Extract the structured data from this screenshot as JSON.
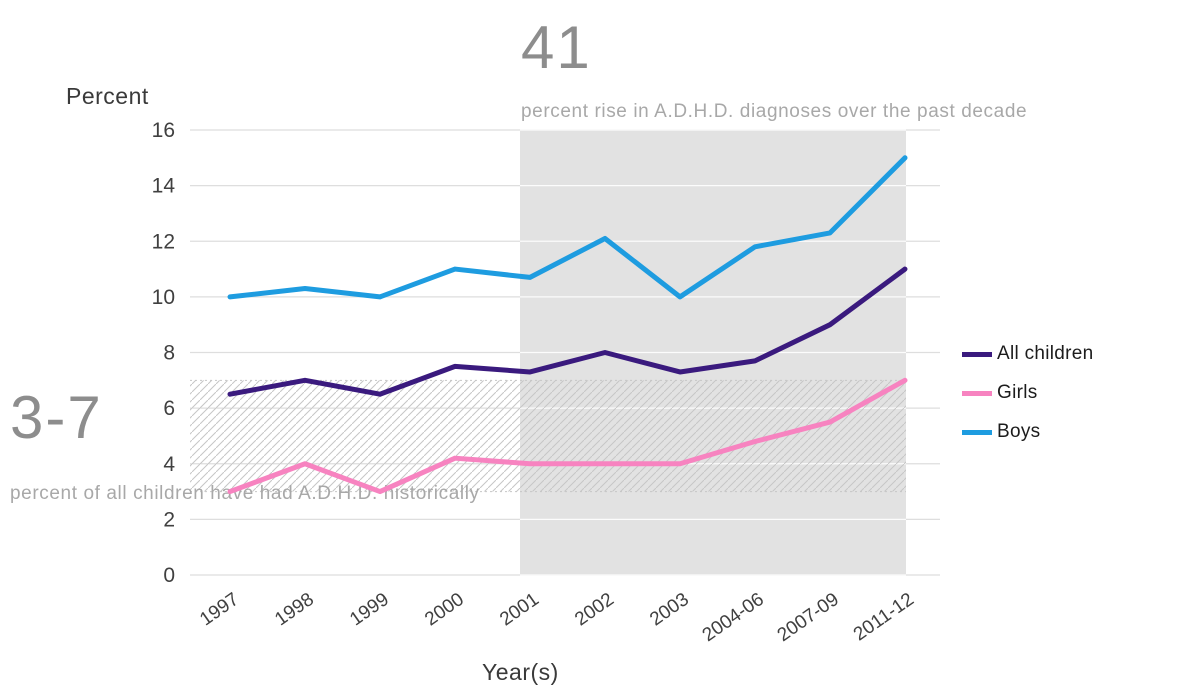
{
  "chart_data": {
    "type": "line",
    "title": "",
    "xlabel": "Year(s)",
    "ylabel": "Percent",
    "ylim": [
      0,
      16
    ],
    "yticks": [
      0,
      2,
      4,
      6,
      8,
      10,
      12,
      14,
      16
    ],
    "categories": [
      "1997",
      "1998",
      "1999",
      "2000",
      "2001",
      "2002",
      "2003",
      "2004-06",
      "2007-09",
      "2011-12"
    ],
    "series": [
      {
        "name": "All children",
        "color": "#3a1a7e",
        "values": [
          6.5,
          7.0,
          6.5,
          7.5,
          7.3,
          8.0,
          7.3,
          7.7,
          9.0,
          11.0
        ]
      },
      {
        "name": "Girls",
        "color": "#f783c0",
        "values": [
          3.0,
          4.0,
          3.0,
          4.2,
          4.0,
          4.0,
          4.0,
          4.8,
          5.5,
          7.0
        ]
      },
      {
        "name": "Boys",
        "color": "#1e9ce0",
        "values": [
          10.0,
          10.3,
          10.0,
          11.0,
          10.7,
          12.1,
          10.0,
          11.8,
          12.3,
          15.0
        ]
      }
    ],
    "grid": true,
    "legend_position": "right",
    "shaded_region": {
      "from": "2001",
      "to": "2011-12"
    },
    "hatched_band": {
      "from_value": 3,
      "to_value": 7
    },
    "annotations": {
      "decade": {
        "value": "41",
        "text": "percent rise in A.D.H.D. diagnoses over the past decade"
      },
      "historical": {
        "value": "3-7",
        "text": "percent of all children have had A.D.H.D. historically"
      }
    },
    "colors": {
      "shaded_region_fill": "#e2e2e2",
      "gridline": "#dedede",
      "hatch_stroke": "#c6c6c6",
      "annotation_number": "#8d8d8d",
      "annotation_text": "#a8a8a8"
    }
  }
}
